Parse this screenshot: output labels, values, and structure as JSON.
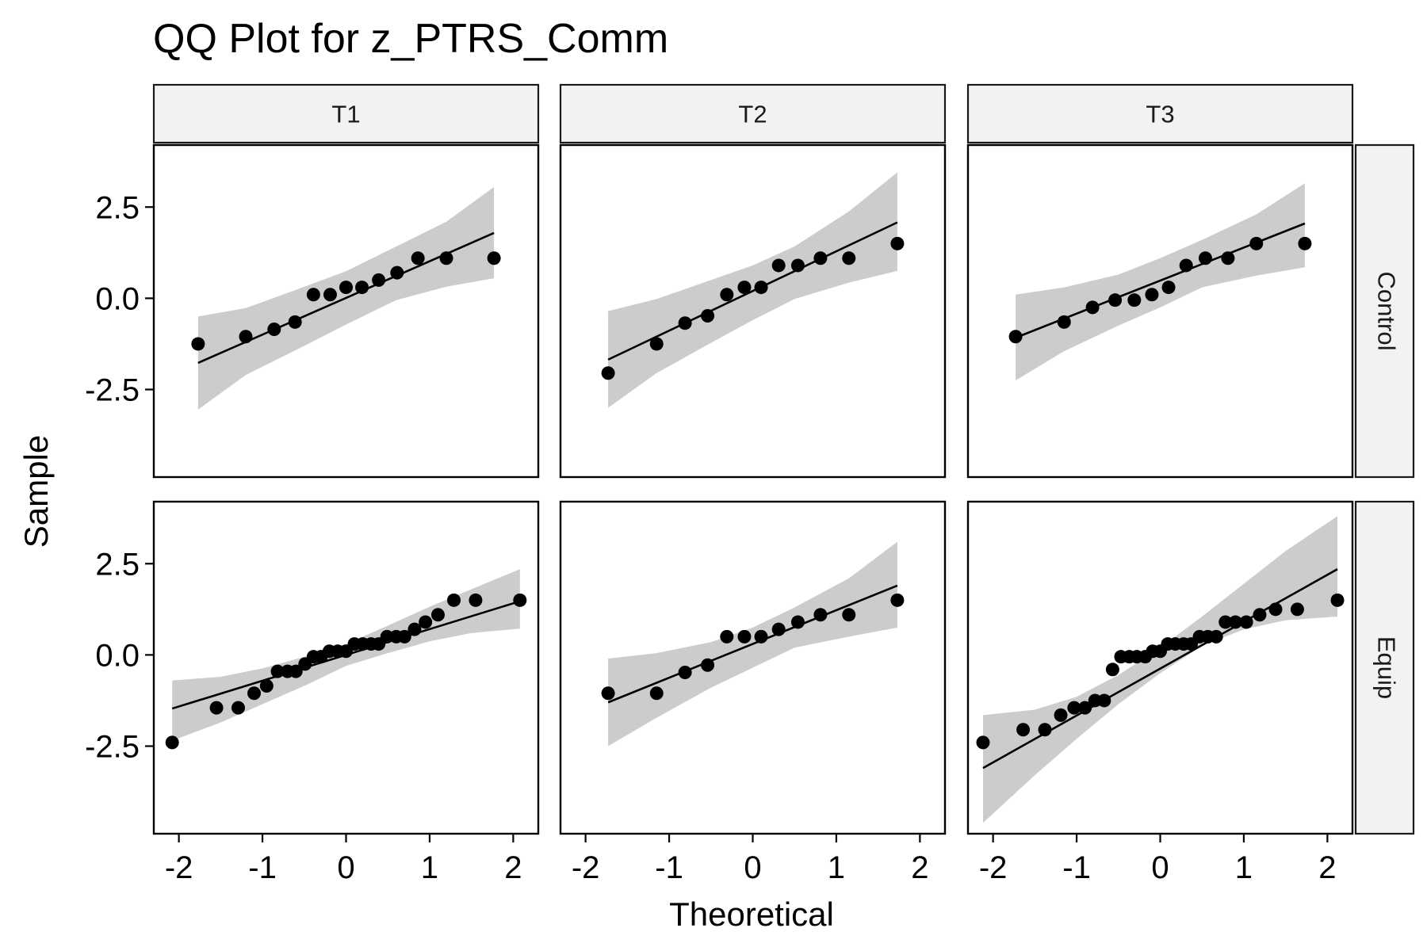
{
  "chart_data": {
    "type": "scatter",
    "title": "QQ Plot for z_PTRS_Comm",
    "xlabel": "Theoretical",
    "ylabel": "Sample",
    "xlim": [
      -2.3,
      2.3
    ],
    "ylim": [
      -4.9,
      4.2
    ],
    "x_ticks": [
      -2,
      -1,
      0,
      1,
      2
    ],
    "y_ticks": [
      -2.5,
      0.0,
      2.5
    ],
    "x_tick_labels": [
      "-2",
      "-1",
      "0",
      "1",
      "2"
    ],
    "y_tick_labels": [
      "-2.5",
      "0.0",
      "2.5"
    ],
    "columns": [
      "T1",
      "T2",
      "T3"
    ],
    "rows": [
      "Control",
      "Equip"
    ],
    "grid": false,
    "band_color": "#cccccc",
    "point_color": "#000000",
    "line_color": "#000000",
    "panels": [
      {
        "column": "T1",
        "row": "Control",
        "points": [
          [
            -1.77,
            -1.25
          ],
          [
            -1.2,
            -1.05
          ],
          [
            -0.86,
            -0.85
          ],
          [
            -0.61,
            -0.65
          ],
          [
            -0.39,
            0.1
          ],
          [
            -0.19,
            0.1
          ],
          [
            0.0,
            0.3
          ],
          [
            0.19,
            0.3
          ],
          [
            0.39,
            0.5
          ],
          [
            0.61,
            0.7
          ],
          [
            0.86,
            1.1
          ],
          [
            1.2,
            1.1
          ],
          [
            1.77,
            1.1
          ]
        ],
        "line": [
          [
            -1.77,
            -1.77
          ],
          [
            1.77,
            1.79
          ]
        ],
        "band": {
          "x": [
            -1.77,
            -1.2,
            -0.6,
            0.0,
            0.6,
            1.2,
            1.77
          ],
          "lower": [
            -3.05,
            -2.1,
            -1.42,
            -0.72,
            -0.05,
            0.32,
            0.55
          ],
          "upper": [
            -0.5,
            -0.27,
            0.23,
            0.74,
            1.42,
            2.1,
            3.05
          ]
        }
      },
      {
        "column": "T2",
        "row": "Control",
        "points": [
          [
            -1.73,
            -2.05
          ],
          [
            -1.15,
            -1.25
          ],
          [
            -0.81,
            -0.68
          ],
          [
            -0.54,
            -0.48
          ],
          [
            -0.31,
            0.1
          ],
          [
            -0.1,
            0.3
          ],
          [
            0.1,
            0.3
          ],
          [
            0.31,
            0.9
          ],
          [
            0.54,
            0.9
          ],
          [
            0.81,
            1.1
          ],
          [
            1.15,
            1.1
          ],
          [
            1.73,
            1.5
          ]
        ],
        "line": [
          [
            -1.73,
            -1.68
          ],
          [
            1.73,
            2.08
          ]
        ],
        "band": {
          "x": [
            -1.73,
            -1.15,
            -0.5,
            0.0,
            0.5,
            1.15,
            1.73
          ],
          "lower": [
            -3.0,
            -2.05,
            -1.22,
            -0.6,
            -0.02,
            0.43,
            0.75
          ],
          "upper": [
            -0.35,
            -0.02,
            0.5,
            0.9,
            1.42,
            2.38,
            3.45
          ]
        }
      },
      {
        "column": "T3",
        "row": "Control",
        "points": [
          [
            -1.73,
            -1.05
          ],
          [
            -1.15,
            -0.65
          ],
          [
            -0.81,
            -0.25
          ],
          [
            -0.54,
            -0.05
          ],
          [
            -0.31,
            -0.05
          ],
          [
            -0.1,
            0.1
          ],
          [
            0.1,
            0.3
          ],
          [
            0.31,
            0.9
          ],
          [
            0.54,
            1.1
          ],
          [
            0.81,
            1.1
          ],
          [
            1.15,
            1.5
          ],
          [
            1.73,
            1.5
          ]
        ],
        "line": [
          [
            -1.73,
            -1.08
          ],
          [
            1.73,
            2.05
          ]
        ],
        "band": {
          "x": [
            -1.73,
            -1.15,
            -0.5,
            0.0,
            0.5,
            1.15,
            1.73
          ],
          "lower": [
            -2.25,
            -1.45,
            -0.75,
            -0.25,
            0.3,
            0.62,
            0.85
          ],
          "upper": [
            0.1,
            0.3,
            0.65,
            1.1,
            1.6,
            2.3,
            3.15
          ]
        }
      },
      {
        "column": "T1",
        "row": "Equip",
        "points": [
          [
            -2.08,
            -2.4
          ],
          [
            -1.55,
            -1.45
          ],
          [
            -1.29,
            -1.45
          ],
          [
            -1.1,
            -1.05
          ],
          [
            -0.95,
            -0.85
          ],
          [
            -0.82,
            -0.45
          ],
          [
            -0.7,
            -0.45
          ],
          [
            -0.6,
            -0.45
          ],
          [
            -0.49,
            -0.25
          ],
          [
            -0.39,
            -0.05
          ],
          [
            -0.3,
            -0.05
          ],
          [
            -0.2,
            0.1
          ],
          [
            -0.1,
            0.1
          ],
          [
            0.0,
            0.1
          ],
          [
            0.1,
            0.3
          ],
          [
            0.2,
            0.3
          ],
          [
            0.3,
            0.3
          ],
          [
            0.39,
            0.3
          ],
          [
            0.49,
            0.5
          ],
          [
            0.6,
            0.5
          ],
          [
            0.7,
            0.5
          ],
          [
            0.82,
            0.7
          ],
          [
            0.95,
            0.9
          ],
          [
            1.1,
            1.1
          ],
          [
            1.29,
            1.5
          ],
          [
            1.55,
            1.5
          ],
          [
            2.08,
            1.5
          ]
        ],
        "line": [
          [
            -2.08,
            -1.47
          ],
          [
            2.08,
            1.47
          ]
        ],
        "band": {
          "x": [
            -2.08,
            -1.5,
            -1.0,
            -0.5,
            0.0,
            0.5,
            1.0,
            1.5,
            2.08
          ],
          "lower": [
            -2.35,
            -1.85,
            -1.35,
            -0.85,
            -0.3,
            0.05,
            0.37,
            0.6,
            0.72
          ],
          "upper": [
            -0.7,
            -0.6,
            -0.37,
            -0.05,
            0.3,
            0.8,
            1.32,
            1.8,
            2.35
          ]
        }
      },
      {
        "column": "T2",
        "row": "Equip",
        "points": [
          [
            -1.73,
            -1.05
          ],
          [
            -1.15,
            -1.05
          ],
          [
            -0.81,
            -0.48
          ],
          [
            -0.54,
            -0.28
          ],
          [
            -0.31,
            0.5
          ],
          [
            -0.1,
            0.5
          ],
          [
            0.1,
            0.5
          ],
          [
            0.31,
            0.7
          ],
          [
            0.54,
            0.9
          ],
          [
            0.81,
            1.1
          ],
          [
            1.15,
            1.1
          ],
          [
            1.73,
            1.5
          ]
        ],
        "line": [
          [
            -1.73,
            -1.3
          ],
          [
            1.73,
            1.9
          ]
        ],
        "band": {
          "x": [
            -1.73,
            -1.15,
            -0.5,
            0.0,
            0.5,
            1.15,
            1.73
          ],
          "lower": [
            -2.5,
            -1.72,
            -0.9,
            -0.35,
            0.2,
            0.5,
            0.75
          ],
          "upper": [
            -0.1,
            0.05,
            0.35,
            0.75,
            1.3,
            2.1,
            3.1
          ]
        }
      },
      {
        "column": "T3",
        "row": "Equip",
        "points": [
          [
            -2.12,
            -2.4
          ],
          [
            -1.64,
            -2.05
          ],
          [
            -1.38,
            -2.05
          ],
          [
            -1.19,
            -1.65
          ],
          [
            -1.03,
            -1.45
          ],
          [
            -0.9,
            -1.45
          ],
          [
            -0.78,
            -1.25
          ],
          [
            -0.67,
            -1.25
          ],
          [
            -0.57,
            -0.4
          ],
          [
            -0.47,
            -0.05
          ],
          [
            -0.37,
            -0.05
          ],
          [
            -0.28,
            -0.05
          ],
          [
            -0.18,
            -0.05
          ],
          [
            -0.09,
            0.1
          ],
          [
            0.0,
            0.1
          ],
          [
            0.09,
            0.3
          ],
          [
            0.18,
            0.3
          ],
          [
            0.28,
            0.3
          ],
          [
            0.37,
            0.3
          ],
          [
            0.47,
            0.5
          ],
          [
            0.57,
            0.5
          ],
          [
            0.67,
            0.5
          ],
          [
            0.78,
            0.9
          ],
          [
            0.9,
            0.9
          ],
          [
            1.03,
            0.9
          ],
          [
            1.19,
            1.1
          ],
          [
            1.38,
            1.25
          ],
          [
            1.64,
            1.25
          ],
          [
            2.12,
            1.5
          ]
        ],
        "line": [
          [
            -2.12,
            -3.1
          ],
          [
            2.12,
            2.35
          ]
        ],
        "band": {
          "x": [
            -2.12,
            -1.5,
            -1.0,
            -0.5,
            0.0,
            0.5,
            1.0,
            1.5,
            2.12
          ],
          "lower": [
            -4.6,
            -3.3,
            -2.3,
            -1.35,
            -0.5,
            0.25,
            0.7,
            0.95,
            1.05
          ],
          "upper": [
            -1.65,
            -1.5,
            -1.15,
            -0.55,
            0.2,
            1.05,
            1.95,
            2.85,
            3.8
          ]
        }
      }
    ]
  }
}
